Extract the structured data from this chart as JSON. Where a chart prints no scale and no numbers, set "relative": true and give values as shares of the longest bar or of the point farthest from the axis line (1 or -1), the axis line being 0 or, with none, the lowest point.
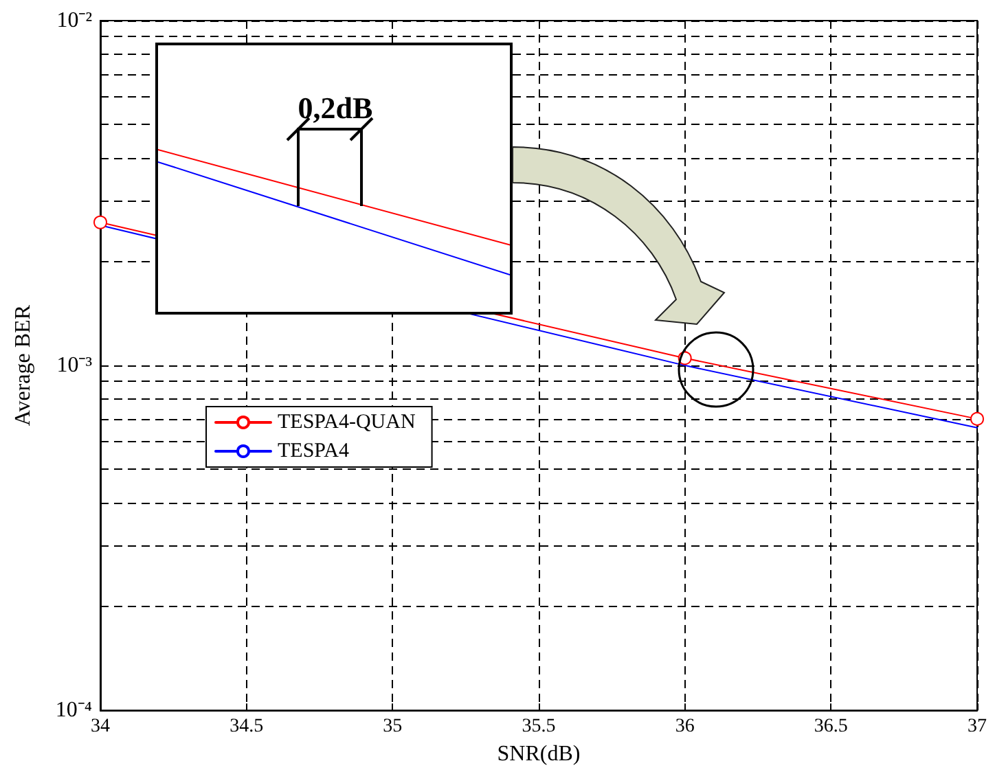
{
  "chart_data": [
    {
      "type": "line",
      "xlabel": "SNR(dB)",
      "ylabel": "Average BER",
      "log": "y",
      "xlim": [
        34,
        37
      ],
      "xticks": [
        34,
        34.5,
        35,
        35.5,
        36,
        36.5,
        37
      ],
      "ylim": [
        0.0001,
        0.01
      ],
      "yticks": [
        {
          "value": 0.0001,
          "label": "10⁻⁴"
        },
        {
          "value": 0.0002,
          "label": null
        },
        {
          "value": 0.0003,
          "label": null
        },
        {
          "value": 0.0004,
          "label": null
        },
        {
          "value": 0.0005,
          "label": null
        },
        {
          "value": 0.0006,
          "label": null
        },
        {
          "value": 0.0007,
          "label": null
        },
        {
          "value": 0.0008,
          "label": null
        },
        {
          "value": 0.0009,
          "label": null
        },
        {
          "value": 0.001,
          "label": "10⁻³"
        },
        {
          "value": 0.002,
          "label": null
        },
        {
          "value": 0.003,
          "label": null
        },
        {
          "value": 0.004,
          "label": null
        },
        {
          "value": 0.005,
          "label": null
        },
        {
          "value": 0.006,
          "label": null
        },
        {
          "value": 0.007,
          "label": null
        },
        {
          "value": 0.008,
          "label": null
        },
        {
          "value": 0.009,
          "label": null
        },
        {
          "value": 0.01,
          "label": "10⁻²"
        }
      ],
      "grid": true,
      "legend": "left",
      "series": [
        {
          "name": "TESPA4-QUAN",
          "color": "#ff0000",
          "x": [
            34,
            36,
            37
          ],
          "values": [
            0.0026,
            0.00105,
            0.0007
          ],
          "marker": "circle"
        },
        {
          "name": "TESPA4",
          "color": "#0000ff",
          "x": [
            34,
            36,
            37
          ],
          "values": [
            0.00255,
            0.001,
            0.00066
          ],
          "marker": "none"
        }
      ]
    },
    {
      "type": "line",
      "relative": true,
      "categories": [
        null,
        null
      ],
      "annotations": [
        "0,2dB"
      ],
      "series": [
        {
          "color": "#ff0000",
          "values": [
            1,
            0.239
          ]
        },
        {
          "color": "#0000ff",
          "values": [
            0.902,
            0
          ]
        }
      ]
    }
  ]
}
